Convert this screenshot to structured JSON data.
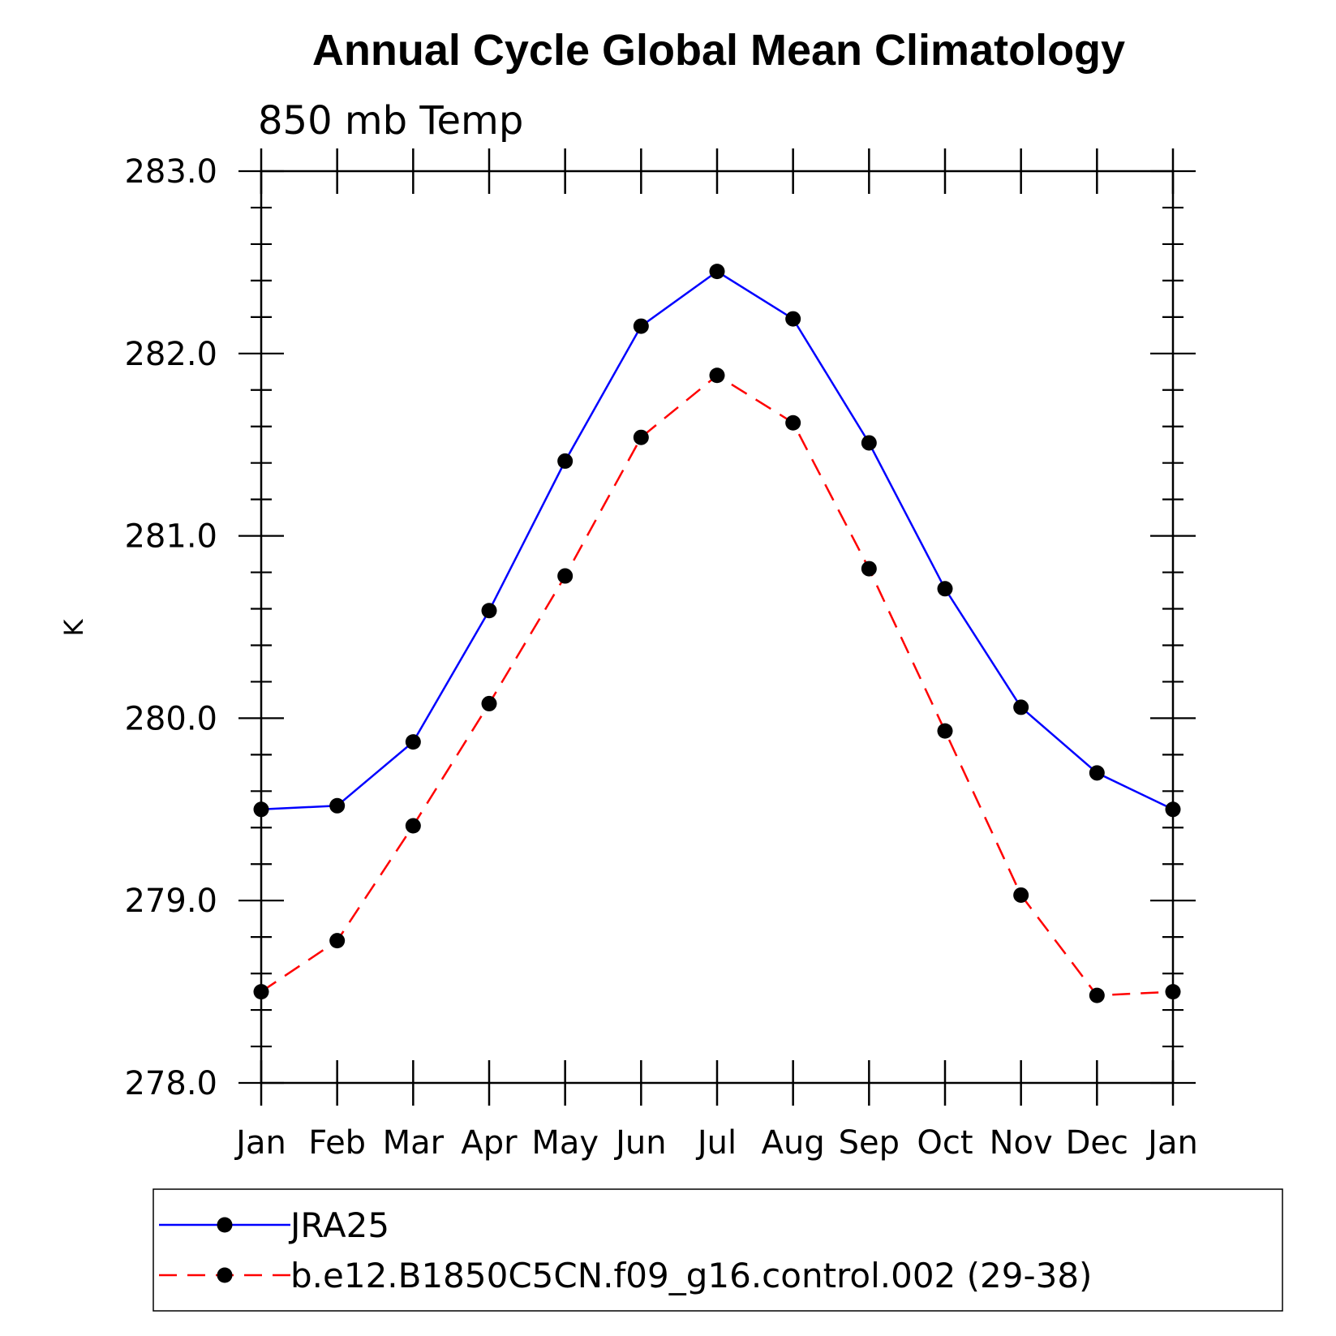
{
  "chart_data": {
    "type": "line",
    "title": "Annual Cycle Global Mean Climatology",
    "subtitle": "850 mb Temp",
    "ylabel": "K",
    "xlabel": "",
    "ylim": [
      278.0,
      283.0
    ],
    "yticks": [
      "278.0",
      "279.0",
      "280.0",
      "281.0",
      "282.0",
      "283.0"
    ],
    "categories": [
      "Jan",
      "Feb",
      "Mar",
      "Apr",
      "May",
      "Jun",
      "Jul",
      "Aug",
      "Sep",
      "Oct",
      "Nov",
      "Dec",
      "Jan"
    ],
    "grid": false,
    "legend_position": "bottom",
    "series": [
      {
        "name": "JRA25",
        "color": "#0000ff",
        "line_style": "solid",
        "marker": "filled-circle",
        "values": [
          279.5,
          279.52,
          279.87,
          280.59,
          281.41,
          282.15,
          282.45,
          282.19,
          281.51,
          280.71,
          280.06,
          279.7,
          279.5
        ]
      },
      {
        "name": "b.e12.B1850C5CN.f09_g16.control.002 (29-38)",
        "color": "#ff0000",
        "line_style": "dashed",
        "marker": "filled-circle",
        "values": [
          278.5,
          278.78,
          279.41,
          280.08,
          280.78,
          281.54,
          281.88,
          281.62,
          280.82,
          279.93,
          279.03,
          278.48,
          278.5
        ]
      }
    ]
  }
}
